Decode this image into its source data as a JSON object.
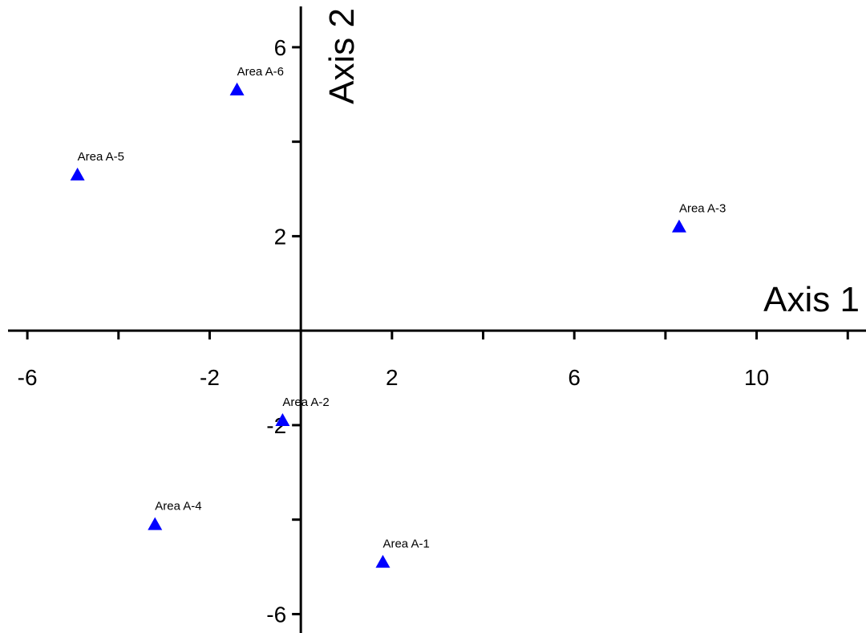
{
  "chart_data": {
    "type": "scatter",
    "xlabel": "Axis 1",
    "ylabel": "Axis 2",
    "xlim": [
      -6.6,
      12.4
    ],
    "ylim": [
      -6.4,
      7.0
    ],
    "x_ticks": [
      -6,
      -4,
      -2,
      0,
      2,
      4,
      6,
      8,
      10,
      12
    ],
    "x_tick_labels": [
      "-6",
      "-2",
      "2",
      "6",
      "10"
    ],
    "x_tick_label_values": [
      -6,
      -2,
      2,
      6,
      10
    ],
    "y_ticks": [
      -6,
      -4,
      -2,
      2,
      4,
      6
    ],
    "y_tick_labels": [
      "6",
      "2",
      "-2",
      "-6"
    ],
    "y_tick_label_values": [
      6,
      2,
      -2,
      -6
    ],
    "grid": false,
    "marker": "triangle",
    "marker_color": "#0000ff",
    "points": [
      {
        "label": "Area A-1",
        "x": 1.8,
        "y": -4.9
      },
      {
        "label": "Area A-2",
        "x": -0.4,
        "y": -1.9
      },
      {
        "label": "Area A-3",
        "x": 8.3,
        "y": 2.2
      },
      {
        "label": "Area A-4",
        "x": -3.2,
        "y": -4.1
      },
      {
        "label": "Area A-5",
        "x": -4.9,
        "y": 3.3
      },
      {
        "label": "Area A-6",
        "x": -1.4,
        "y": 5.1
      }
    ]
  }
}
